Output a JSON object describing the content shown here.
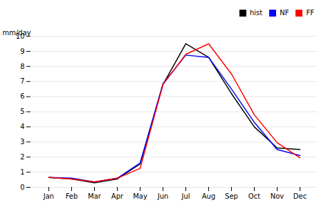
{
  "chart_data": {
    "type": "line",
    "categories": [
      "Jan",
      "Feb",
      "Mar",
      "Apr",
      "May",
      "Jun",
      "Jul",
      "Aug",
      "Sep",
      "Oct",
      "Nov",
      "Dec"
    ],
    "series": [
      {
        "name": "hist",
        "color": "#000000",
        "values": [
          0.65,
          0.55,
          0.3,
          0.55,
          1.55,
          6.8,
          9.5,
          8.6,
          6.2,
          4.0,
          2.6,
          2.5
        ]
      },
      {
        "name": "NF",
        "color": "#0000ff",
        "values": [
          0.65,
          0.6,
          0.35,
          0.6,
          1.6,
          6.85,
          8.75,
          8.6,
          6.5,
          4.3,
          2.5,
          2.1
        ]
      },
      {
        "name": "FF",
        "color": "#ff0000",
        "values": [
          0.65,
          0.55,
          0.35,
          0.6,
          1.25,
          6.8,
          8.8,
          9.5,
          7.5,
          4.8,
          2.95,
          1.95
        ]
      }
    ],
    "ylabel": "mm/day",
    "ylim": [
      0,
      10
    ],
    "yticks": [
      0,
      1,
      2,
      3,
      4,
      5,
      6,
      7,
      8,
      9,
      10
    ],
    "grid": true,
    "legend": "upper right"
  }
}
